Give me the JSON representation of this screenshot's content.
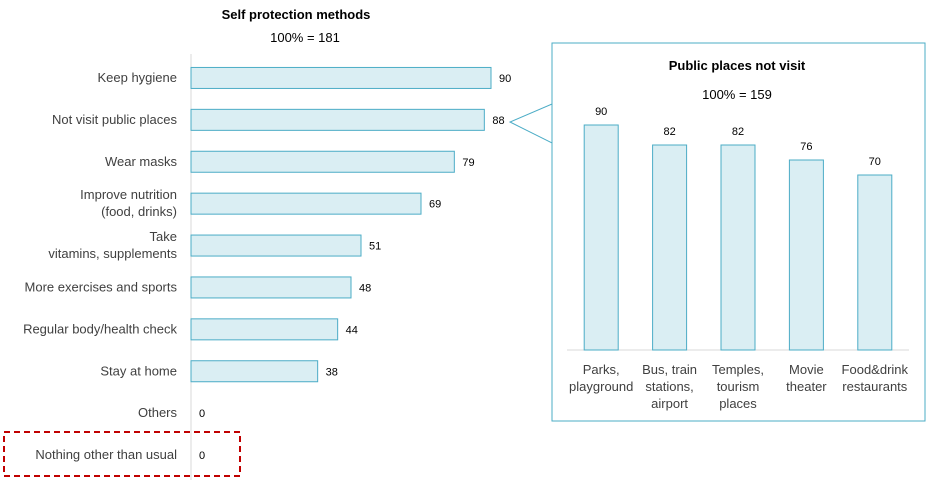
{
  "chart_data": [
    {
      "type": "bar",
      "orientation": "horizontal",
      "title": "Self protection methods",
      "subtitle": "100% = 181",
      "categories": [
        "Keep hygiene",
        "Not visit public places",
        "Wear masks",
        "Improve nutrition (food, drinks)",
        "Take vitamins, supplements",
        "More exercises and sports",
        "Regular body/health check",
        "Stay at home",
        "Others",
        "Nothing other than usual"
      ],
      "category_lines": [
        [
          "Keep hygiene"
        ],
        [
          "Not visit public places"
        ],
        [
          "Wear masks"
        ],
        [
          "Improve nutrition",
          "(food, drinks)"
        ],
        [
          "Take",
          "vitamins, supplements"
        ],
        [
          "More exercises and sports"
        ],
        [
          "Regular body/health check"
        ],
        [
          "Stay at home"
        ],
        [
          "Others"
        ],
        [
          "Nothing other than usual"
        ]
      ],
      "values": [
        90,
        88,
        79,
        69,
        51,
        48,
        44,
        38,
        0,
        0
      ],
      "highlighted_category": "Nothing other than usual",
      "bar_fill": "#daeef3",
      "bar_stroke": "#4bacc6"
    },
    {
      "type": "bar",
      "orientation": "vertical",
      "title": "Public places not visit",
      "subtitle": "100% = 159",
      "callout_from": "Not visit public places",
      "categories": [
        "Parks, playground",
        "Bus, train stations, airport",
        "Temples, tourism places",
        "Movie theater",
        "Food&drink restaurants"
      ],
      "category_lines": [
        [
          "Parks,",
          "playground"
        ],
        [
          "Bus, train",
          "stations,",
          "airport"
        ],
        [
          "Temples,",
          "tourism",
          "places"
        ],
        [
          "Movie",
          "theater"
        ],
        [
          "Food&drink",
          "restaurants"
        ]
      ],
      "values": [
        90,
        82,
        82,
        76,
        70
      ],
      "bar_fill": "#daeef3",
      "bar_stroke": "#4bacc6",
      "panel_border": "#4bacc6",
      "highlight_color": "#c00000"
    }
  ]
}
